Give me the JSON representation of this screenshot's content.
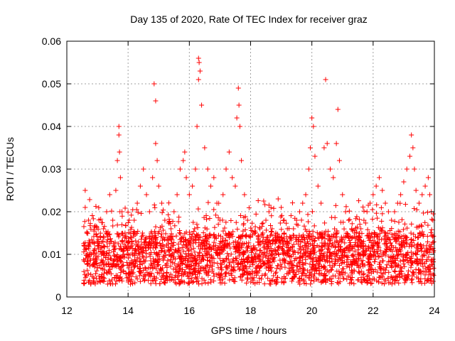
{
  "chart_data": {
    "type": "scatter",
    "title": "Day 135 of 2020, Rate Of TEC Index for receiver graz",
    "xlabel": "GPS time / hours",
    "ylabel": "ROTI / TECUs",
    "xlim": [
      12,
      24
    ],
    "ylim": [
      0,
      0.06
    ],
    "xticks": [
      "12",
      "14",
      "16",
      "18",
      "20",
      "22",
      "24"
    ],
    "xtick_values": [
      12,
      14,
      16,
      18,
      20,
      22,
      24
    ],
    "yticks": [
      "0",
      "0.01",
      "0.02",
      "0.03",
      "0.04",
      "0.05",
      "0.06"
    ],
    "ytick_values": [
      0,
      0.01,
      0.02,
      0.03,
      0.04,
      0.05,
      0.06
    ],
    "grid": true,
    "marker": "+",
    "color": "#ff0000",
    "series": [
      {
        "name": "ROTI",
        "x": [
          12.6,
          12.6,
          12.65,
          12.7,
          12.8,
          12.9,
          13.0,
          13.1,
          13.2,
          13.3,
          13.4,
          13.5,
          13.6,
          13.65,
          13.7,
          13.7,
          13.72,
          13.75,
          13.8,
          13.9,
          14.0,
          14.1,
          14.2,
          14.3,
          14.4,
          14.5,
          14.6,
          14.7,
          14.8,
          14.85,
          14.9,
          14.9,
          14.95,
          15.0,
          15.1,
          15.2,
          15.3,
          15.4,
          15.5,
          15.6,
          15.7,
          15.8,
          15.85,
          15.9,
          16.0,
          16.1,
          16.2,
          16.25,
          16.3,
          16.3,
          16.32,
          16.35,
          16.4,
          16.5,
          16.6,
          16.7,
          16.8,
          16.9,
          17.0,
          17.1,
          17.2,
          17.3,
          17.4,
          17.5,
          17.55,
          17.6,
          17.62,
          17.65,
          17.7,
          17.8,
          17.9,
          18.0,
          18.1,
          18.2,
          18.3,
          18.4,
          18.5,
          18.6,
          18.7,
          18.8,
          18.9,
          19.0,
          19.1,
          19.2,
          19.3,
          19.4,
          19.5,
          19.6,
          19.7,
          19.8,
          19.9,
          19.95,
          20.0,
          20.05,
          20.1,
          20.2,
          20.3,
          20.4,
          20.45,
          20.5,
          20.6,
          20.7,
          20.8,
          20.85,
          20.9,
          21.0,
          21.1,
          21.2,
          21.3,
          21.4,
          21.5,
          21.6,
          21.7,
          21.8,
          21.9,
          22.0,
          22.1,
          22.2,
          22.3,
          22.4,
          22.5,
          22.6,
          22.7,
          22.8,
          22.9,
          23.0,
          23.1,
          23.2,
          23.25,
          23.3,
          23.35,
          23.4,
          23.5,
          23.6,
          23.7,
          23.8,
          23.85,
          23.9,
          23.95
        ],
        "y": [
          0.025,
          0.021,
          0.015,
          0.012,
          0.01,
          0.008,
          0.012,
          0.014,
          0.016,
          0.02,
          0.024,
          0.018,
          0.025,
          0.032,
          0.038,
          0.04,
          0.034,
          0.028,
          0.02,
          0.015,
          0.012,
          0.014,
          0.018,
          0.022,
          0.026,
          0.03,
          0.024,
          0.02,
          0.028,
          0.05,
          0.046,
          0.036,
          0.032,
          0.026,
          0.022,
          0.018,
          0.014,
          0.016,
          0.02,
          0.024,
          0.03,
          0.032,
          0.034,
          0.028,
          0.024,
          0.026,
          0.03,
          0.04,
          0.051,
          0.056,
          0.055,
          0.053,
          0.045,
          0.035,
          0.03,
          0.026,
          0.028,
          0.022,
          0.018,
          0.024,
          0.03,
          0.034,
          0.028,
          0.026,
          0.042,
          0.049,
          0.045,
          0.04,
          0.032,
          0.024,
          0.018,
          0.014,
          0.012,
          0.011,
          0.013,
          0.015,
          0.018,
          0.02,
          0.016,
          0.014,
          0.023,
          0.021,
          0.018,
          0.016,
          0.014,
          0.016,
          0.018,
          0.02,
          0.022,
          0.024,
          0.03,
          0.035,
          0.042,
          0.04,
          0.033,
          0.026,
          0.022,
          0.035,
          0.051,
          0.036,
          0.03,
          0.028,
          0.036,
          0.044,
          0.032,
          0.024,
          0.02,
          0.018,
          0.016,
          0.015,
          0.014,
          0.016,
          0.018,
          0.02,
          0.022,
          0.024,
          0.026,
          0.028,
          0.025,
          0.022,
          0.02,
          0.018,
          0.02,
          0.022,
          0.024,
          0.027,
          0.03,
          0.033,
          0.038,
          0.035,
          0.03,
          0.025,
          0.022,
          0.024,
          0.026,
          0.028,
          0.024,
          0.02,
          0.018
        ]
      }
    ]
  }
}
